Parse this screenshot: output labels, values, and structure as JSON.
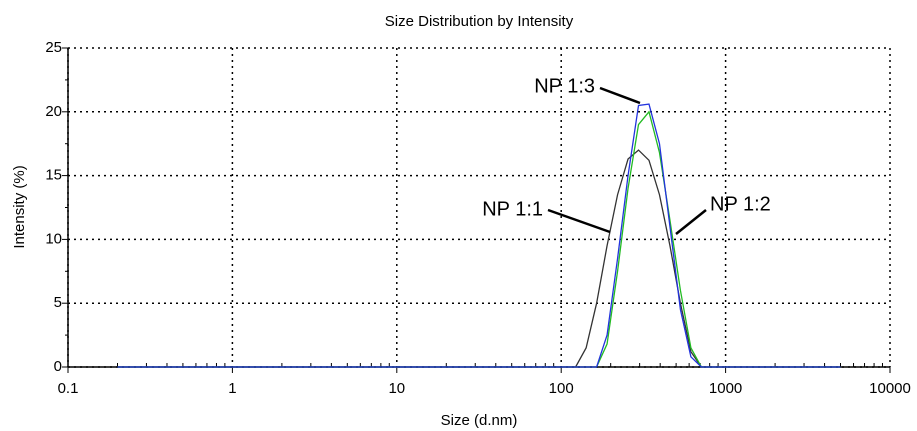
{
  "chart_data": {
    "type": "line",
    "title": "Size Distribution by Intensity",
    "x_label": "Size (d.nm)",
    "y_label": "Intensity (%)",
    "x": [
      0.2,
      1,
      10,
      100,
      122.4,
      141.8,
      164.2,
      190.1,
      220.2,
      255.0,
      295.3,
      342.0,
      396.1,
      458.7,
      531.2,
      615.1,
      712.4,
      825.0,
      5000
    ],
    "series": [
      {
        "name": "NP 1:1",
        "color": "#333333",
        "values": [
          0,
          0,
          0,
          0,
          0,
          1.5,
          5,
          9.5,
          13.5,
          16.3,
          17.0,
          16.2,
          13.5,
          9.5,
          5,
          1.2,
          0,
          0,
          0
        ]
      },
      {
        "name": "NP 1:2",
        "color": "#22bb22",
        "values": [
          0,
          0,
          0,
          0,
          0,
          0,
          0,
          1.8,
          7.5,
          14,
          19,
          20,
          16.8,
          11.5,
          6,
          1.5,
          0,
          0,
          0
        ]
      },
      {
        "name": "NP 1:3",
        "color": "#2233dd",
        "values": [
          0,
          0,
          0,
          0,
          0,
          0,
          0,
          2.5,
          8.5,
          15,
          20.5,
          20.6,
          17.5,
          11,
          4.5,
          0.8,
          0,
          0,
          0
        ]
      }
    ],
    "annotations": [
      {
        "text": "NP 1:1"
      },
      {
        "text": "NP 1:2"
      },
      {
        "text": "NP 1:3"
      }
    ],
    "xlim": [
      0.1,
      10000
    ],
    "xticks": [
      0.1,
      1,
      10,
      100,
      1000,
      10000
    ],
    "x_scale": "log",
    "ylim": [
      0,
      25
    ],
    "yticks": [
      0,
      5,
      10,
      15,
      20,
      25
    ],
    "grid": true
  }
}
